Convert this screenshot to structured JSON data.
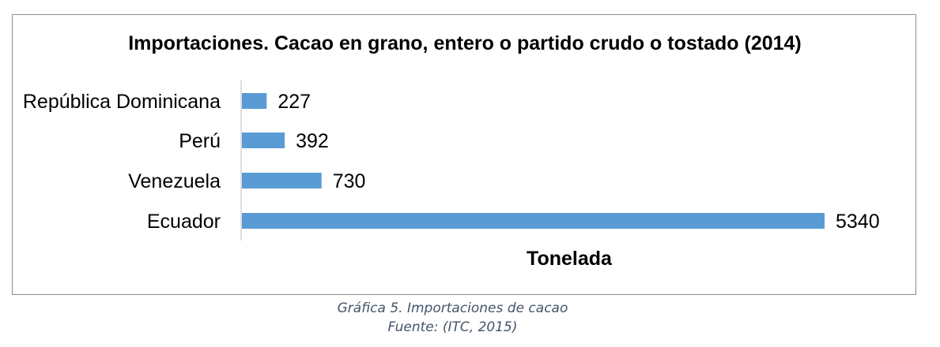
{
  "chart_data": {
    "type": "bar",
    "orientation": "horizontal",
    "title": "Importaciones. Cacao en grano, entero o partido crudo o tostado (2014)",
    "xlabel": "Tonelada",
    "ylabel": "",
    "categories": [
      "República Dominicana",
      "Perú",
      "Venezuela",
      "Ecuador"
    ],
    "values": [
      227,
      392,
      730,
      5340
    ],
    "data_labels": [
      "227",
      "392",
      "730",
      "5340"
    ],
    "xlim": [
      0,
      5340
    ],
    "bar_color": "#5b9bd5",
    "grid": false,
    "legend": "none"
  },
  "caption": {
    "line1": "Gráfica 5. Importaciones de cacao",
    "line2": "Fuente: (ITC, 2015)"
  }
}
